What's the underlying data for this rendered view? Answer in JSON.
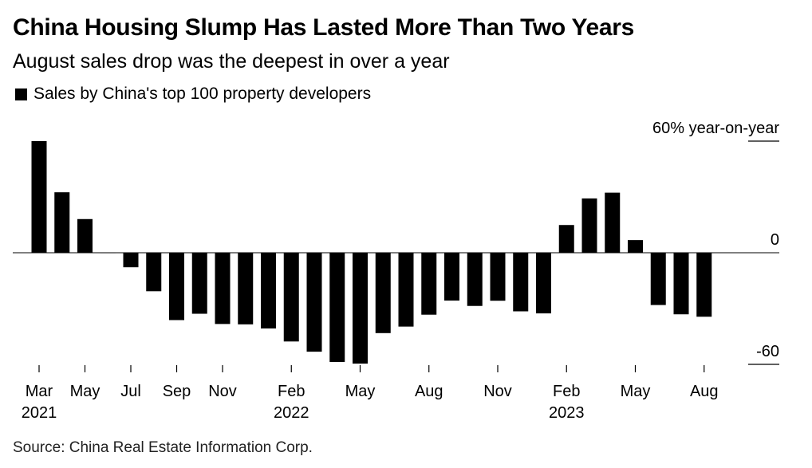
{
  "title": "China Housing Slump Has Lasted More Than Two Years",
  "subtitle": "August sales drop was the deepest in over a year",
  "source": "Source: China Real Estate Information Corp.",
  "chart_data": {
    "type": "bar",
    "title": "China Housing Slump Has Lasted More Than Two Years",
    "subtitle": "August sales drop was the deepest in over a year",
    "xlabel": "",
    "ylabel": "",
    "ylim": [
      -60,
      60
    ],
    "y_ticks": [
      {
        "value": 60,
        "label": "60% year-on-year"
      },
      {
        "value": 0,
        "label": "0"
      },
      {
        "value": -60,
        "label": "-60"
      }
    ],
    "x_ticks": [
      {
        "category": "2021-03",
        "month": "Mar",
        "year": "2021"
      },
      {
        "category": "2021-05",
        "month": "May",
        "year": ""
      },
      {
        "category": "2021-07",
        "month": "Jul",
        "year": ""
      },
      {
        "category": "2021-09",
        "month": "Sep",
        "year": ""
      },
      {
        "category": "2021-11",
        "month": "Nov",
        "year": ""
      },
      {
        "category": "2022-02",
        "month": "Feb",
        "year": "2022"
      },
      {
        "category": "2022-05",
        "month": "May",
        "year": ""
      },
      {
        "category": "2022-08",
        "month": "Aug",
        "year": ""
      },
      {
        "category": "2022-11",
        "month": "Nov",
        "year": ""
      },
      {
        "category": "2023-02",
        "month": "Feb",
        "year": "2023"
      },
      {
        "category": "2023-05",
        "month": "May",
        "year": ""
      },
      {
        "category": "2023-08",
        "month": "Aug",
        "year": ""
      }
    ],
    "legend_position": "top-left",
    "grid": false,
    "series": [
      {
        "name": "Sales by China's top 100 property developers",
        "color": "#000000",
        "categories": [
          "2021-03",
          "2021-04",
          "2021-05",
          "2021-06",
          "2021-07",
          "2021-08",
          "2021-09",
          "2021-10",
          "2021-11",
          "2021-12",
          "2022-01",
          "2022-02",
          "2022-03",
          "2022-04",
          "2022-05",
          "2022-06",
          "2022-07",
          "2022-08",
          "2022-09",
          "2022-10",
          "2022-11",
          "2022-12",
          "2023-01",
          "2023-02",
          "2023-03",
          "2023-04",
          "2023-05",
          "2023-06",
          "2023-07",
          "2023-08"
        ],
        "values": [
          60,
          32.5,
          18.1,
          0.2,
          -7.8,
          -20.7,
          -36.2,
          -32.8,
          -38.3,
          -38.5,
          -40.7,
          -47.7,
          -53.2,
          -58.7,
          -59.6,
          -43.2,
          -39.7,
          -33.3,
          -25.7,
          -28.6,
          -25.8,
          -31.5,
          -32.6,
          14.9,
          29.2,
          32.3,
          6.8,
          -28.1,
          -33.1,
          -34.4
        ]
      }
    ]
  }
}
